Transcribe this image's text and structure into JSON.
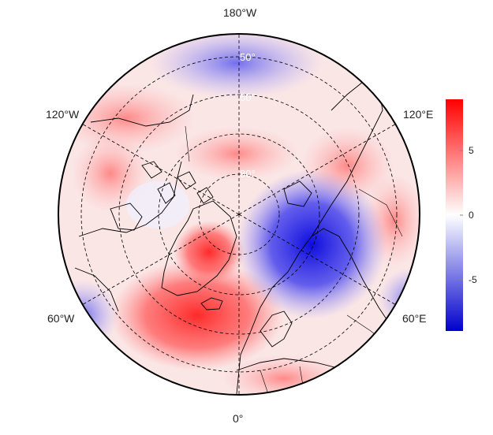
{
  "map": {
    "longitude_labels": {
      "top": "180°W",
      "upper_left": "120°W",
      "upper_right": "120°E",
      "lower_left": "60°W",
      "lower_right": "60°E",
      "bottom": "0°"
    },
    "latitude_labels": [
      "50°",
      "60°",
      "80°"
    ],
    "colors": {
      "positive": "#ff0000",
      "neutral": "#ffffff",
      "negative": "#0000cc",
      "coastline": "#000000",
      "grid": "#000000"
    }
  },
  "colorbar": {
    "min": -9,
    "max": 9,
    "ticks": [
      {
        "value": 5,
        "label": "5"
      },
      {
        "value": 0,
        "label": "0"
      },
      {
        "value": -5,
        "label": "-5"
      }
    ]
  }
}
